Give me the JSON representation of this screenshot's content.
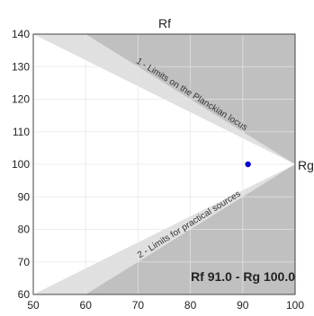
{
  "chart_data": {
    "type": "scatter",
    "title": "Rf",
    "ylabel_right": "Rg",
    "xlim": [
      50,
      100
    ],
    "ylim": [
      60,
      140
    ],
    "x_ticks": [
      50,
      60,
      70,
      80,
      90,
      100
    ],
    "y_ticks": [
      60,
      70,
      80,
      90,
      100,
      110,
      120,
      130,
      140
    ],
    "grid": true,
    "zones": [
      {
        "label": "1 - Limits on the Planckian locus",
        "polygon": [
          [
            50,
            140
          ],
          [
            60,
            140
          ],
          [
            100,
            100
          ]
        ]
      },
      {
        "label": "2 - Limits for practical sources",
        "polygon": [
          [
            50,
            60
          ],
          [
            60,
            60
          ],
          [
            100,
            100
          ]
        ]
      }
    ],
    "point": {
      "x": 91.0,
      "y": 100.0
    },
    "readout": "Rf 91.0 - Rg 100.0",
    "colors": {
      "background_zone": "#c0c0c0",
      "band_zone": "#e0e0e0",
      "valid_zone": "#ffffff",
      "grid": "#e6e6e6",
      "point": "#0000cc"
    }
  }
}
